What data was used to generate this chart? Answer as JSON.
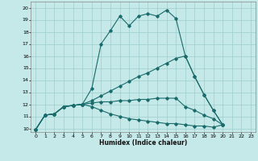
{
  "xlabel": "Humidex (Indice chaleur)",
  "bg_color": "#c5e8e8",
  "grid_color": "#9ecece",
  "line_color": "#1a6b6b",
  "xlim": [
    -0.5,
    23.5
  ],
  "ylim": [
    9.7,
    20.5
  ],
  "xticks": [
    0,
    1,
    2,
    3,
    4,
    5,
    6,
    7,
    8,
    9,
    10,
    11,
    12,
    13,
    14,
    15,
    16,
    17,
    18,
    19,
    20,
    21,
    22,
    23
  ],
  "yticks": [
    10,
    11,
    12,
    13,
    14,
    15,
    16,
    17,
    18,
    19,
    20
  ],
  "series": [
    {
      "x": [
        0,
        1,
        2,
        3,
        4,
        5,
        6,
        7,
        8,
        9,
        10,
        11,
        12,
        13,
        14,
        15,
        16,
        17,
        18,
        19,
        20
      ],
      "y": [
        9.9,
        11.1,
        11.2,
        11.8,
        11.9,
        12.0,
        13.3,
        17.0,
        18.1,
        19.3,
        18.5,
        19.3,
        19.5,
        19.3,
        19.8,
        19.1,
        16.0,
        14.3,
        12.8,
        11.5,
        10.3
      ]
    },
    {
      "x": [
        0,
        1,
        2,
        3,
        4,
        5,
        6,
        7,
        8,
        9,
        10,
        11,
        12,
        13,
        14,
        15,
        16,
        17,
        18,
        19,
        20
      ],
      "y": [
        9.9,
        11.1,
        11.2,
        11.8,
        11.9,
        12.0,
        12.3,
        12.7,
        13.1,
        13.5,
        13.9,
        14.3,
        14.6,
        15.0,
        15.4,
        15.8,
        16.0,
        14.3,
        12.8,
        11.5,
        10.3
      ]
    },
    {
      "x": [
        0,
        1,
        2,
        3,
        4,
        5,
        6,
        7,
        8,
        9,
        10,
        11,
        12,
        13,
        14,
        15,
        16,
        17,
        18,
        19,
        20
      ],
      "y": [
        9.9,
        11.1,
        11.2,
        11.8,
        11.9,
        12.0,
        12.1,
        12.2,
        12.2,
        12.3,
        12.3,
        12.4,
        12.4,
        12.5,
        12.5,
        12.5,
        11.8,
        11.5,
        11.1,
        10.8,
        10.3
      ]
    },
    {
      "x": [
        0,
        1,
        2,
        3,
        4,
        5,
        6,
        7,
        8,
        9,
        10,
        11,
        12,
        13,
        14,
        15,
        16,
        17,
        18,
        19,
        20
      ],
      "y": [
        9.9,
        11.1,
        11.2,
        11.8,
        11.9,
        12.0,
        11.8,
        11.5,
        11.2,
        11.0,
        10.8,
        10.7,
        10.6,
        10.5,
        10.4,
        10.4,
        10.3,
        10.2,
        10.2,
        10.1,
        10.3
      ]
    }
  ]
}
